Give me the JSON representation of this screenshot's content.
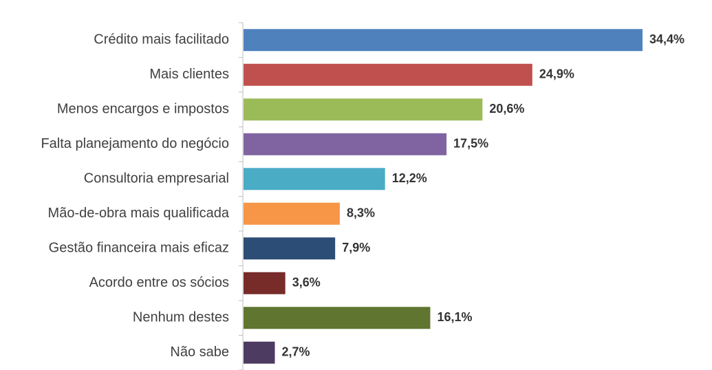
{
  "chart_data": {
    "type": "bar",
    "orientation": "horizontal",
    "title": "",
    "xlabel": "",
    "ylabel": "",
    "xlim": [
      0,
      35
    ],
    "grid": false,
    "legend": "none",
    "categories": [
      "Crédito mais facilitado",
      "Mais clientes",
      "Menos encargos e impostos",
      "Falta planejamento do negócio",
      "Consultoria empresarial",
      "Mão-de-obra mais qualificada",
      "Gestão financeira mais eficaz",
      "Acordo entre os sócios",
      "Nenhum destes",
      "Não sabe"
    ],
    "values": [
      34.4,
      24.9,
      20.6,
      17.5,
      12.2,
      8.3,
      7.9,
      3.6,
      16.1,
      2.7
    ],
    "value_labels": [
      "34,4%",
      "24,9%",
      "20,6%",
      "17,5%",
      "12,2%",
      "8,3%",
      "7,9%",
      "3,6%",
      "16,1%",
      "2,7%"
    ],
    "colors": [
      "#4F81BD",
      "#C0504D",
      "#9BBB59",
      "#8064A2",
      "#4BACC6",
      "#F79646",
      "#2C4D75",
      "#772C2A",
      "#5F7530",
      "#4D3B62"
    ]
  }
}
